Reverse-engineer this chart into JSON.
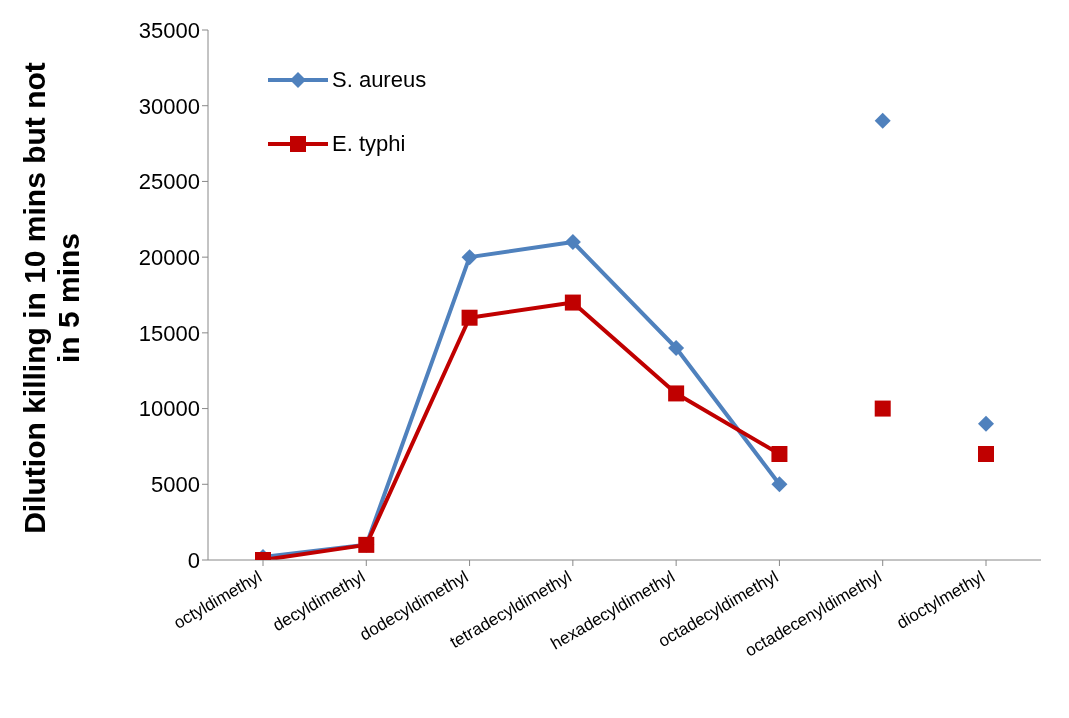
{
  "chart_data": {
    "type": "line",
    "ylabel": "Dilution killing in 10 mins but not in 5 mins",
    "categories": [
      "octyldimethyl",
      "decyldimethyl",
      "dodecyldimethyl",
      "tetradecyldimethyl",
      "hexadecyldimethyl",
      "octadecyldimethyl",
      "octadecenyldimethyl",
      "dioctylmethyl"
    ],
    "series": [
      {
        "name": "S. aureus",
        "color": "#4f81bd",
        "marker": "diamond",
        "values": [
          200,
          1000,
          20000,
          21000,
          14000,
          5000,
          null,
          null
        ]
      },
      {
        "name": "E. typhi",
        "color": "#c00000",
        "marker": "square",
        "values": [
          0,
          1000,
          16000,
          17000,
          11000,
          7000,
          null,
          null
        ]
      },
      {
        "type": "scatter",
        "color": "#4f81bd",
        "marker": "diamond",
        "values": [
          null,
          null,
          null,
          null,
          null,
          null,
          29000,
          9000
        ]
      },
      {
        "type": "scatter",
        "color": "#c00000",
        "marker": "square",
        "values": [
          null,
          null,
          null,
          null,
          null,
          null,
          10000,
          7000
        ]
      }
    ],
    "ylim": [
      0,
      35000
    ],
    "yticks": [
      0,
      5000,
      10000,
      15000,
      20000,
      25000,
      30000,
      35000
    ],
    "legend": "top left",
    "line_style": "solid"
  }
}
